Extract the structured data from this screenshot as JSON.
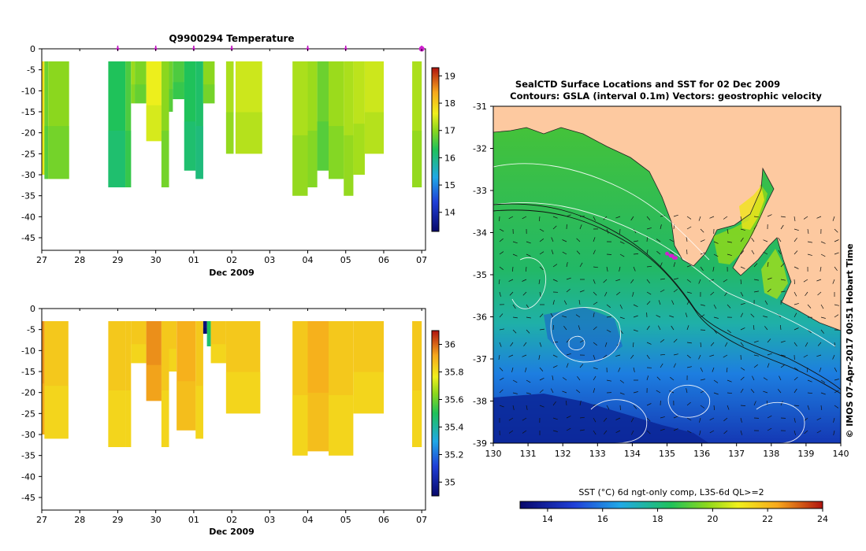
{
  "chart_data": [
    {
      "type": "heatmap",
      "name": "temperature-profile",
      "title": "Q9900294  Temperature",
      "xlabel": "Dec 2009",
      "x_ticks": [
        "27",
        "28",
        "29",
        "30",
        "01",
        "02",
        "03",
        "04",
        "05",
        "06",
        "07"
      ],
      "y_ticks": [
        0,
        -5,
        -10,
        -15,
        -20,
        -25,
        -30,
        -35,
        -40,
        -45
      ],
      "ylim": [
        -48,
        0
      ],
      "colorbar": {
        "ticks": [
          14,
          15,
          16,
          17,
          18,
          19
        ],
        "range": [
          13.3,
          19.3
        ]
      },
      "markers_day": [
        2,
        3,
        4,
        5,
        7,
        8,
        10
      ],
      "columns": [
        {
          "day": 0.0,
          "w": 0.07,
          "depth": 30,
          "value": 17.8
        },
        {
          "day": 0.07,
          "w": 0.1,
          "depth": 31,
          "value": 16.8
        },
        {
          "day": 0.17,
          "w": 0.55,
          "depth": 31,
          "value": 17.0
        },
        {
          "day": 1.75,
          "w": 0.45,
          "depth": 33,
          "value": 16.3
        },
        {
          "day": 2.2,
          "w": 0.15,
          "depth": 33,
          "value": 16.6
        },
        {
          "day": 2.35,
          "w": 0.1,
          "depth": 13,
          "value": 17.1
        },
        {
          "day": 2.45,
          "w": 0.3,
          "depth": 13,
          "value": 16.9
        },
        {
          "day": 2.75,
          "w": 0.4,
          "depth": 22,
          "value": 17.6
        },
        {
          "day": 3.15,
          "w": 0.2,
          "depth": 33,
          "value": 17.0
        },
        {
          "day": 3.35,
          "w": 0.1,
          "depth": 15,
          "value": 16.8
        },
        {
          "day": 3.45,
          "w": 0.3,
          "depth": 12,
          "value": 16.6
        },
        {
          "day": 3.75,
          "w": 0.3,
          "depth": 29,
          "value": 16.3
        },
        {
          "day": 4.05,
          "w": 0.2,
          "depth": 31,
          "value": 16.2
        },
        {
          "day": 4.25,
          "w": 0.3,
          "depth": 13,
          "value": 17.0
        },
        {
          "day": 4.85,
          "w": 0.2,
          "depth": 25,
          "value": 17.2
        },
        {
          "day": 5.1,
          "w": 0.7,
          "depth": 25,
          "value": 17.4
        },
        {
          "day": 6.6,
          "w": 0.4,
          "depth": 35,
          "value": 17.2
        },
        {
          "day": 7.0,
          "w": 0.25,
          "depth": 33,
          "value": 17.1
        },
        {
          "day": 7.25,
          "w": 0.3,
          "depth": 29,
          "value": 16.8
        },
        {
          "day": 7.55,
          "w": 0.4,
          "depth": 31,
          "value": 17.1
        },
        {
          "day": 7.95,
          "w": 0.25,
          "depth": 35,
          "value": 17.2
        },
        {
          "day": 8.2,
          "w": 0.3,
          "depth": 30,
          "value": 17.3
        },
        {
          "day": 8.5,
          "w": 0.5,
          "depth": 25,
          "value": 17.4
        },
        {
          "day": 9.75,
          "w": 0.25,
          "depth": 33,
          "value": 17.2
        }
      ]
    },
    {
      "type": "heatmap",
      "name": "salinity-profile",
      "title": "",
      "xlabel": "Dec 2009",
      "x_ticks": [
        "27",
        "28",
        "29",
        "30",
        "01",
        "02",
        "03",
        "04",
        "05",
        "06",
        "07"
      ],
      "y_ticks": [
        0,
        -5,
        -10,
        -15,
        -20,
        -25,
        -30,
        -35,
        -40,
        -45
      ],
      "ylim": [
        -48,
        0
      ],
      "colorbar": {
        "ticks": [
          35.0,
          35.2,
          35.4,
          35.6,
          35.8,
          36.0
        ],
        "range": [
          34.9,
          36.1
        ]
      },
      "columns": [
        {
          "day": 0.0,
          "w": 0.07,
          "depth": 30,
          "value": 35.95
        },
        {
          "day": 0.07,
          "w": 0.63,
          "depth": 31,
          "value": 35.85
        },
        {
          "day": 1.75,
          "w": 0.45,
          "depth": 33,
          "value": 35.85
        },
        {
          "day": 2.2,
          "w": 0.15,
          "depth": 33,
          "value": 35.85
        },
        {
          "day": 2.35,
          "w": 0.4,
          "depth": 13,
          "value": 35.85
        },
        {
          "day": 2.75,
          "w": 0.4,
          "depth": 22,
          "value": 35.95
        },
        {
          "day": 3.15,
          "w": 0.2,
          "depth": 33,
          "value": 35.85
        },
        {
          "day": 3.35,
          "w": 0.2,
          "depth": 15,
          "value": 35.85
        },
        {
          "day": 3.55,
          "w": 0.5,
          "depth": 29,
          "value": 35.9
        },
        {
          "day": 4.05,
          "w": 0.2,
          "depth": 31,
          "value": 35.85
        },
        {
          "day": 4.25,
          "w": 0.1,
          "depth": 6,
          "value": 34.93
        },
        {
          "day": 4.35,
          "w": 0.1,
          "depth": 9,
          "value": 35.5
        },
        {
          "day": 4.45,
          "w": 0.4,
          "depth": 13,
          "value": 35.85
        },
        {
          "day": 4.85,
          "w": 0.9,
          "depth": 25,
          "value": 35.85
        },
        {
          "day": 6.6,
          "w": 0.4,
          "depth": 35,
          "value": 35.85
        },
        {
          "day": 7.0,
          "w": 0.55,
          "depth": 34,
          "value": 35.9
        },
        {
          "day": 7.55,
          "w": 0.65,
          "depth": 35,
          "value": 35.85
        },
        {
          "day": 8.2,
          "w": 0.8,
          "depth": 25,
          "value": 35.85
        },
        {
          "day": 9.75,
          "w": 0.25,
          "depth": 33,
          "value": 35.85
        }
      ]
    },
    {
      "type": "heatmap",
      "name": "sst-map",
      "title": "SealCTD Surface Locations and SST for 02 Dec 2009",
      "subtitle": "Contours: GSLA (interval 0.1m) Vectors: geostrophic velocity",
      "xlabel": "",
      "x_ticks": [
        130,
        131,
        132,
        133,
        134,
        135,
        136,
        137,
        138,
        139,
        140
      ],
      "y_ticks": [
        -31,
        -32,
        -33,
        -34,
        -35,
        -36,
        -37,
        -38,
        -39
      ],
      "xlim": [
        130,
        140
      ],
      "ylim": [
        -39,
        -31
      ],
      "colorbar_label": "SST (°C) 6d ngt-only comp, L3S-6d QL>=2",
      "colorbar": {
        "ticks": [
          14,
          16,
          18,
          20,
          22,
          24
        ],
        "range": [
          13,
          24
        ]
      },
      "side_label": "© IMOS 07-Apr-2017 00:51 Hobart Time",
      "seal_track": [
        [
          135.0,
          -34.5
        ],
        [
          135.1,
          -34.55
        ],
        [
          135.15,
          -34.55
        ],
        [
          135.2,
          -34.6
        ],
        [
          135.25,
          -34.6
        ]
      ]
    }
  ]
}
